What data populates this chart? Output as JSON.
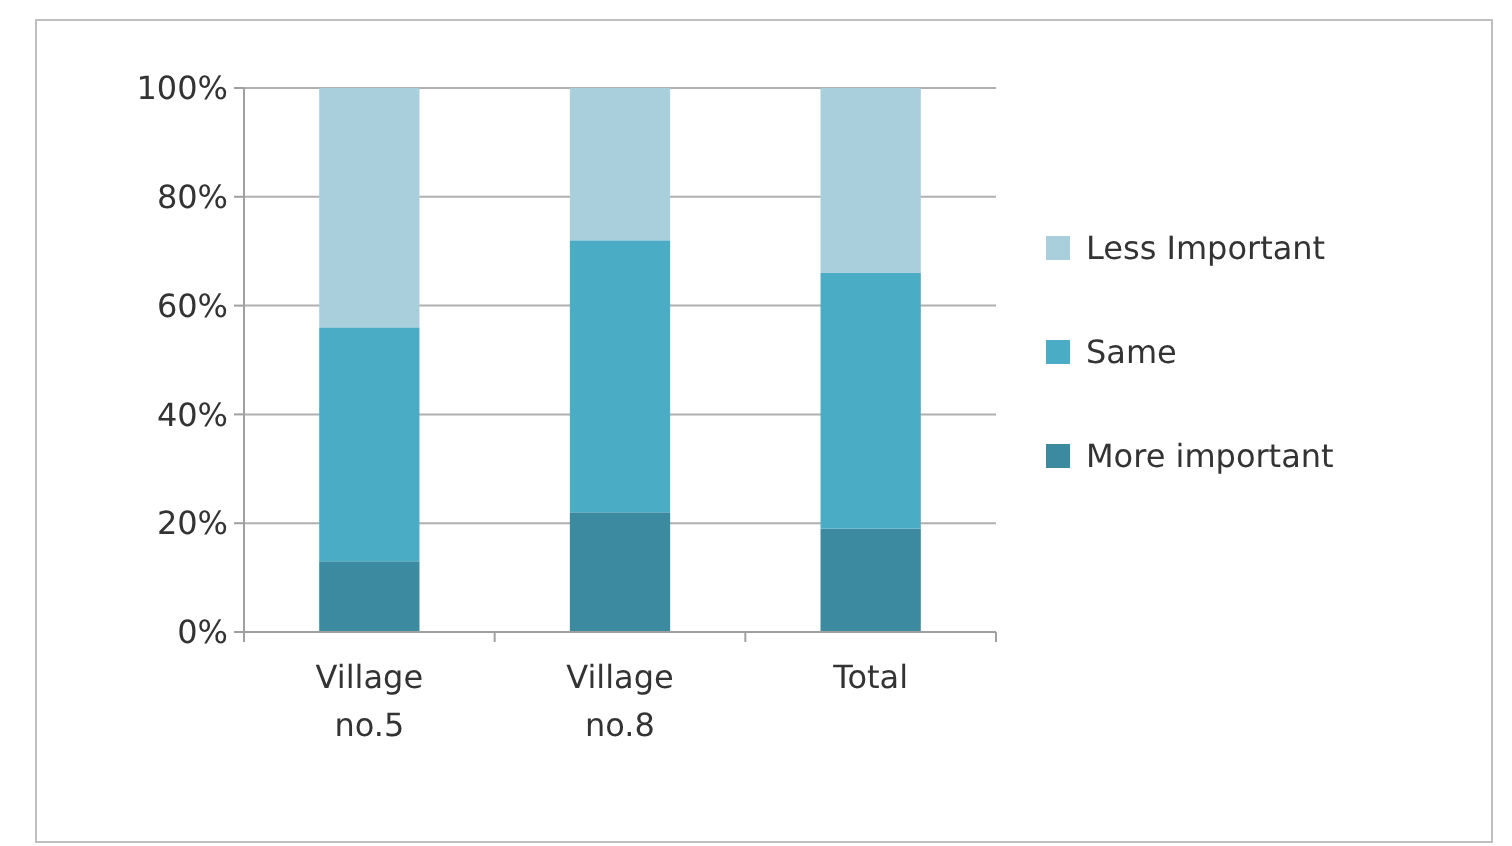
{
  "chart_data": {
    "type": "bar",
    "stacked": true,
    "categories": [
      "Village no.5",
      "Village no.8",
      "Total"
    ],
    "series": [
      {
        "name": "More important",
        "color": "#3b8aa0",
        "values": [
          13,
          22,
          19
        ]
      },
      {
        "name": "Same",
        "color": "#4bacc6",
        "values": [
          43,
          50,
          47
        ]
      },
      {
        "name": "Less Important",
        "color": "#a9cfdc",
        "values": [
          44,
          28,
          34
        ]
      }
    ],
    "ylim": [
      0,
      100
    ],
    "yticks": [
      {
        "value": 0,
        "label": "0%"
      },
      {
        "value": 20,
        "label": "20%"
      },
      {
        "value": 40,
        "label": "40%"
      },
      {
        "value": 60,
        "label": "60%"
      },
      {
        "value": 80,
        "label": "80%"
      },
      {
        "value": 100,
        "label": "100%"
      }
    ],
    "grid": "y",
    "legend": "right"
  }
}
